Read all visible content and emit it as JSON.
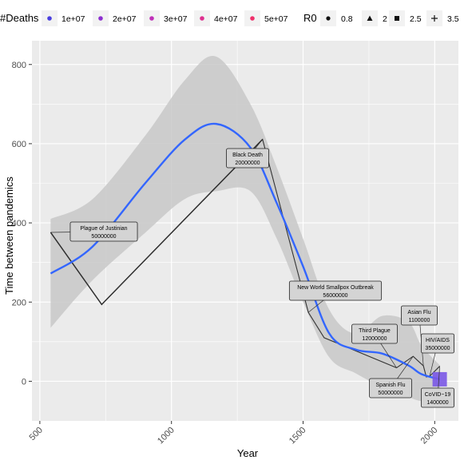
{
  "chart_data": {
    "type": "line",
    "xlabel": "Year",
    "ylabel": "Time between pandemics",
    "xlim": [
      470,
      2090
    ],
    "ylim": [
      -100,
      860
    ],
    "x_ticks": [
      "500",
      "1000",
      "1500",
      "2000"
    ],
    "y_ticks": [
      "0",
      "200",
      "400",
      "600",
      "800"
    ],
    "legend_deaths": {
      "title": "#Deaths",
      "entries": [
        "1e+07",
        "2e+07",
        "3e+07",
        "4e+07",
        "5e+07"
      ],
      "colors": [
        "#4a3fe0",
        "#8c2fd0",
        "#bf2fb8",
        "#de2f8f",
        "#ef2f6a"
      ]
    },
    "legend_r0": {
      "title": "R0",
      "entries": [
        "0.8",
        "2",
        "2.5",
        "3.5"
      ],
      "shapes": [
        "circle",
        "triangle",
        "square",
        "plus"
      ]
    },
    "observed_line": {
      "x": [
        541,
        735,
        1346,
        1520,
        1580,
        1855,
        1918,
        1957,
        1968,
        1981,
        2019
      ],
      "y": [
        376,
        194,
        611,
        174,
        110,
        34,
        63,
        39,
        11,
        13,
        38
      ]
    },
    "early_link": {
      "x": [
        541,
        735,
        1346
      ],
      "y": [
        376,
        194,
        611
      ]
    },
    "smooth_fit": {
      "x": [
        541,
        700,
        900,
        1050,
        1170,
        1300,
        1400,
        1500,
        1600,
        1700,
        1800,
        1900,
        1950,
        2020
      ],
      "y": [
        272,
        340,
        500,
        610,
        650,
        590,
        450,
        290,
        120,
        80,
        70,
        40,
        18,
        5
      ]
    },
    "confidence_band": {
      "x": [
        541,
        700,
        900,
        1050,
        1170,
        1300,
        1400,
        1500,
        1600,
        1700,
        1800,
        1900,
        1950,
        2020
      ],
      "upper": [
        410,
        460,
        620,
        760,
        820,
        700,
        540,
        360,
        180,
        120,
        165,
        150,
        90,
        40
      ],
      "lower": [
        135,
        255,
        375,
        460,
        480,
        480,
        360,
        200,
        60,
        20,
        -15,
        -40,
        -50,
        -50
      ]
    },
    "annotations": [
      {
        "name": "Plague of Justinian",
        "deaths": "50000000",
        "x": 541,
        "y": 376
      },
      {
        "name": "Black Death",
        "deaths": "20000000",
        "x": 1346,
        "y": 611
      },
      {
        "name": "New World Smallpox Outbreak",
        "deaths": "56000000",
        "x": 1520,
        "y": 174
      },
      {
        "name": "Third Plague",
        "deaths": "12000000",
        "x": 1855,
        "y": 34
      },
      {
        "name": "Spanish Flu",
        "deaths": "50000000",
        "x": 1918,
        "y": 63
      },
      {
        "name": "Asian Flu",
        "deaths": "1100000",
        "x": 1957,
        "y": 39
      },
      {
        "name": "HIV/AIDS",
        "deaths": "35000000",
        "x": 1981,
        "y": 13
      },
      {
        "name": "CoVID−19",
        "deaths": "1400000",
        "x": 2019,
        "y": 38
      }
    ],
    "covid_marker": {
      "x": 2019,
      "y": 5,
      "color": "#7a58e6",
      "shape": "square"
    },
    "colors": {
      "panel": "#ebebeb",
      "grid": "#ffffff",
      "band": "#c8c8c8",
      "fit": "#3366ff",
      "observed": "#333333",
      "link": "#000000"
    }
  }
}
